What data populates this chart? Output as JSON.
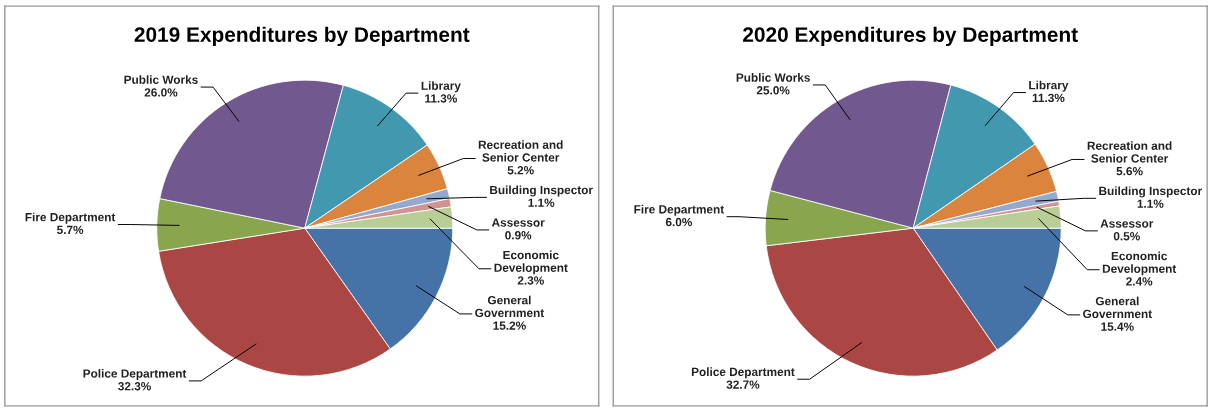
{
  "chart_data": [
    {
      "type": "pie",
      "title": "2019 Expenditures by Department",
      "categories": [
        "General\nGovernment",
        "Police Department",
        "Fire Department",
        "Public Works",
        "Library",
        "Recreation and\nSenior Center",
        "Building Inspector",
        "Assessor",
        "Economic\nDevelopment"
      ],
      "values": [
        15.2,
        32.3,
        5.7,
        26.0,
        11.3,
        5.2,
        1.1,
        0.9,
        2.3
      ],
      "value_labels": [
        "15.2%",
        "32.3%",
        "5.7%",
        "26.0%",
        "11.3%",
        "5.2%",
        "1.1%",
        "0.9%",
        "2.3%"
      ],
      "colors": [
        "#4572a7",
        "#aa4643",
        "#89a54e",
        "#71588f",
        "#4198af",
        "#db843d",
        "#93a9cf",
        "#d19392",
        "#b9cd96"
      ],
      "legend": false
    },
    {
      "type": "pie",
      "title": "2020 Expenditures by Department",
      "categories": [
        "General\nGovernment",
        "Police Department",
        "Fire Department",
        "Public Works",
        "Library",
        "Recreation and\nSenior Center",
        "Building Inspector",
        "Assessor",
        "Economic\nDevelopment"
      ],
      "values": [
        15.4,
        32.7,
        6.0,
        25.0,
        11.3,
        5.6,
        1.1,
        0.5,
        2.4
      ],
      "value_labels": [
        "15.4%",
        "32.7%",
        "6.0%",
        "25.0%",
        "11.3%",
        "5.6%",
        "1.1%",
        "0.5%",
        "2.4%"
      ],
      "colors": [
        "#4572a7",
        "#aa4643",
        "#89a54e",
        "#71588f",
        "#4198af",
        "#db843d",
        "#93a9cf",
        "#d19392",
        "#b9cd96"
      ],
      "legend": false
    }
  ]
}
